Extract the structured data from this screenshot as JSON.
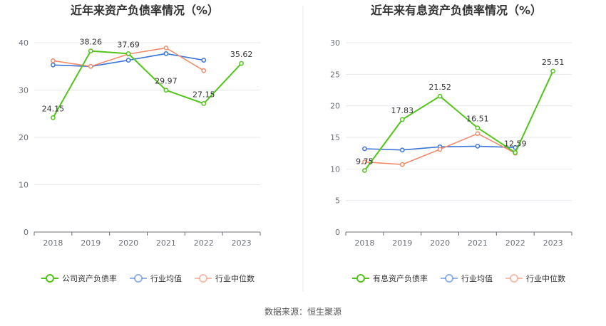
{
  "source_label": "数据来源：恒生聚源",
  "chart_data": [
    {
      "type": "line",
      "title": "近年来资产负债率情况（%）",
      "categories": [
        "2018",
        "2019",
        "2020",
        "2021",
        "2022",
        "2023"
      ],
      "ylim": [
        0,
        40
      ],
      "yticks": [
        0,
        10,
        20,
        30,
        40
      ],
      "grid": true,
      "legend_position": "bottom-center",
      "series": [
        {
          "name": "公司资产负债率",
          "color": "#52c41a",
          "values": [
            24.15,
            38.26,
            37.69,
            29.97,
            27.15,
            35.62
          ],
          "labels": [
            "24.15",
            "38.26",
            "37.69",
            "29.97",
            "27.15",
            "35.62"
          ]
        },
        {
          "name": "行业均值",
          "color": "#3a75d8",
          "values": [
            35.3,
            35.0,
            36.3,
            37.7,
            36.3,
            null
          ]
        },
        {
          "name": "行业中位数",
          "color": "#f28b6d",
          "values": [
            36.2,
            35.0,
            37.6,
            38.9,
            34.1,
            null
          ]
        }
      ]
    },
    {
      "type": "line",
      "title": "近年来有息资产负债率情况（%）",
      "categories": [
        "2018",
        "2019",
        "2020",
        "2021",
        "2022",
        "2023"
      ],
      "ylim": [
        0,
        30
      ],
      "yticks": [
        0,
        5,
        10,
        15,
        20,
        25,
        30
      ],
      "grid": true,
      "legend_position": "bottom-center",
      "series": [
        {
          "name": "有息资产负债率",
          "color": "#52c41a",
          "values": [
            9.75,
            17.83,
            21.52,
            16.51,
            12.59,
            25.51
          ],
          "labels": [
            "9.75",
            "17.83",
            "21.52",
            "16.51",
            "12.59",
            "25.51"
          ]
        },
        {
          "name": "行业均值",
          "color": "#3a75d8",
          "values": [
            13.2,
            13.0,
            13.5,
            13.6,
            13.4,
            null
          ]
        },
        {
          "name": "行业中位数",
          "color": "#f28b6d",
          "values": [
            11.1,
            10.7,
            13.1,
            15.6,
            12.5,
            null
          ]
        }
      ]
    }
  ]
}
